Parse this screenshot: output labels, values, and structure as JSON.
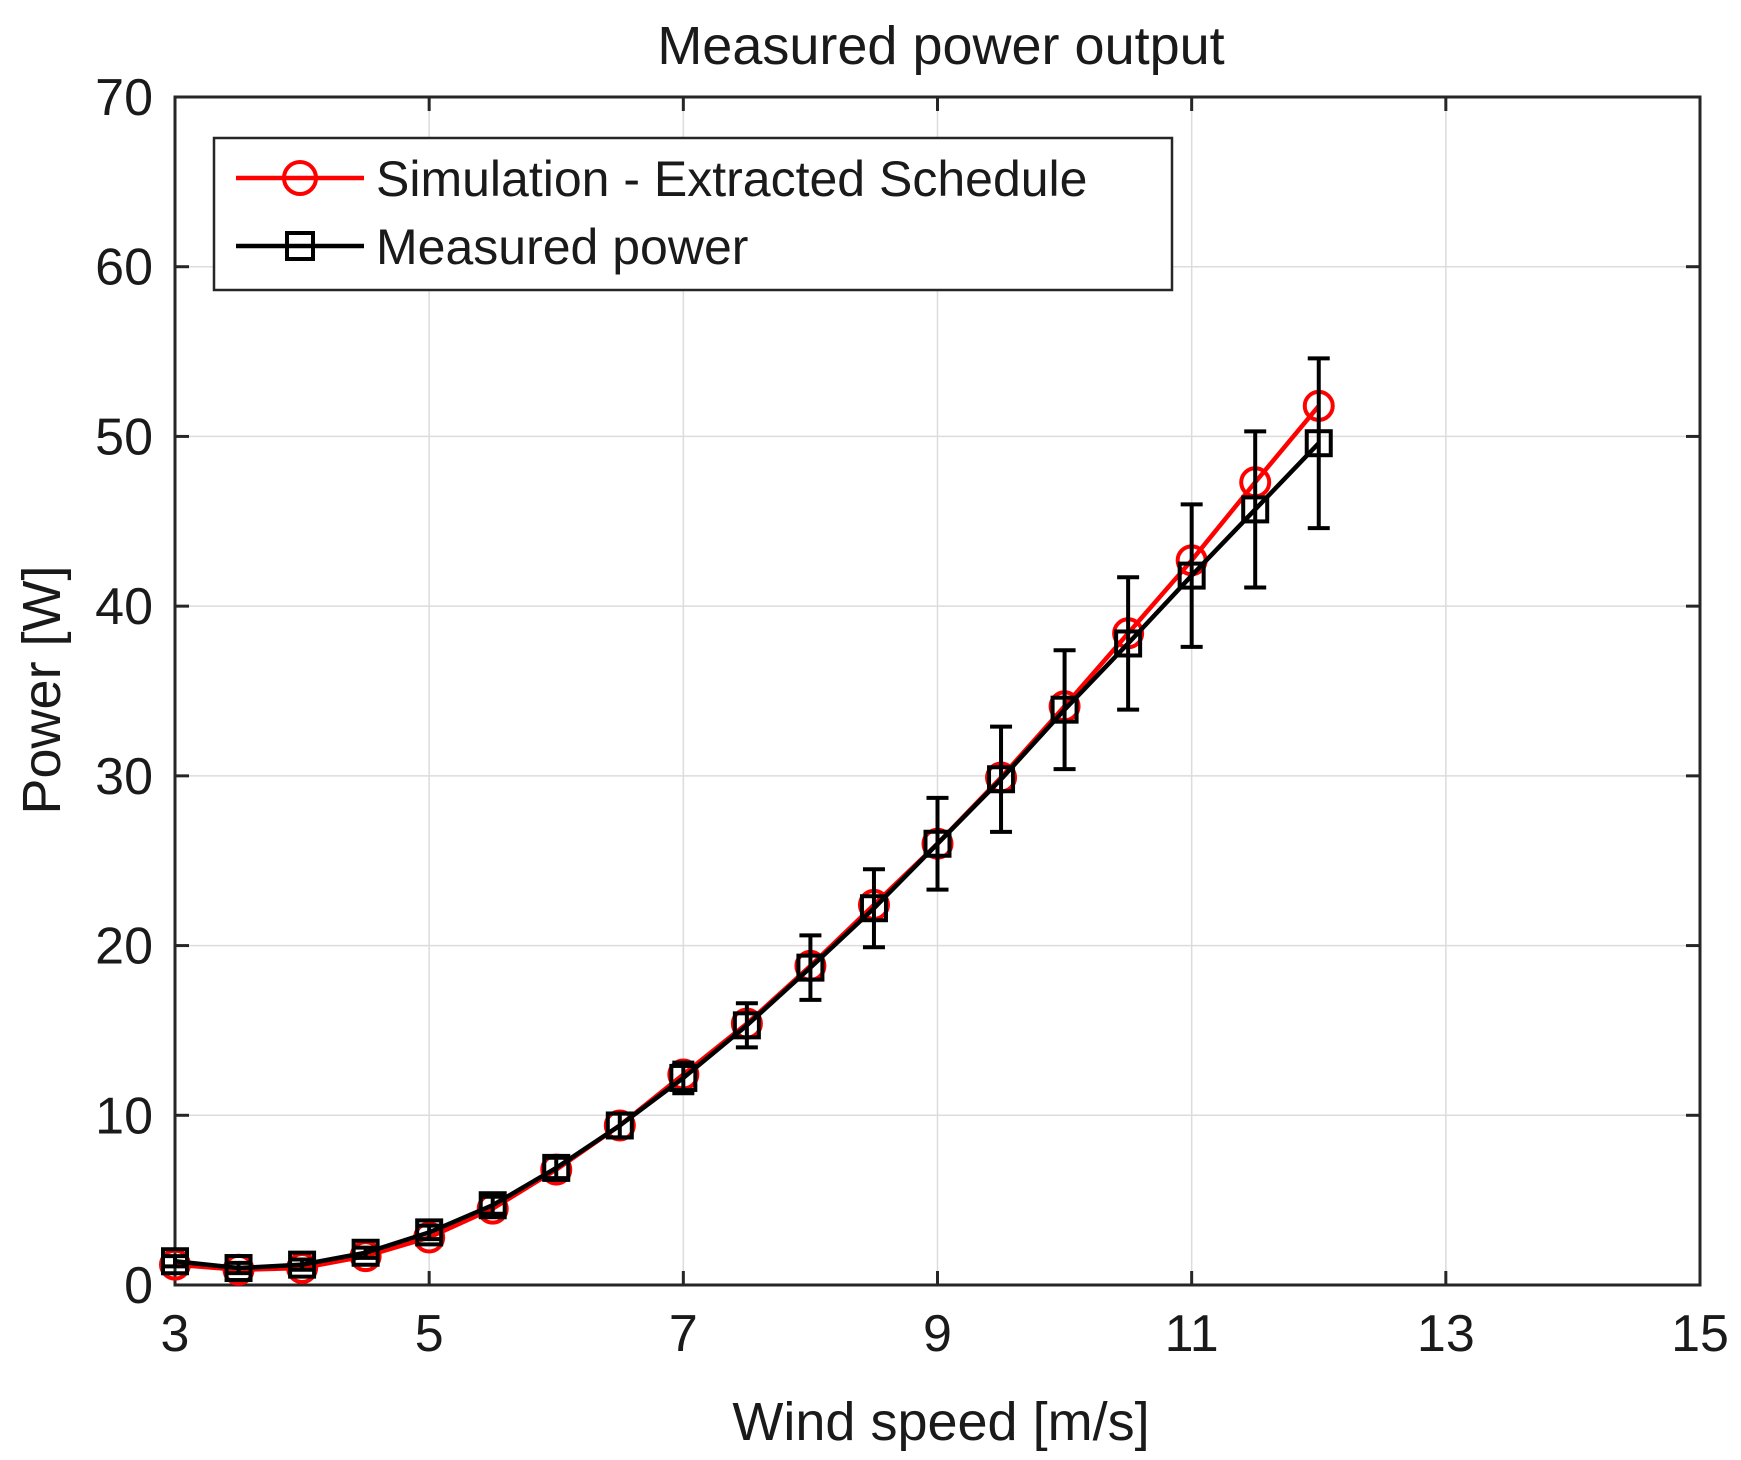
{
  "chart_data": {
    "type": "line",
    "title": "Measured power output",
    "xlabel": "Wind speed [m/s]",
    "ylabel": "Power [W]",
    "xlim": [
      3,
      15
    ],
    "ylim": [
      0,
      70
    ],
    "xticks": [
      3,
      5,
      7,
      9,
      11,
      13,
      15
    ],
    "xtick_labels": [
      "3",
      "5",
      "7",
      "9",
      "11",
      "13",
      "15"
    ],
    "yticks": [
      0,
      10,
      20,
      30,
      40,
      50,
      60,
      70
    ],
    "ytick_labels": [
      "0",
      "10",
      "20",
      "30",
      "40",
      "50",
      "60",
      "70"
    ],
    "grid": true,
    "legend_position": "top-left",
    "x": [
      3,
      3.5,
      4,
      4.5,
      5,
      5.5,
      6,
      6.5,
      7,
      7.5,
      8,
      8.5,
      9,
      9.5,
      10,
      10.5,
      11,
      11.5,
      12
    ],
    "series": [
      {
        "name": "Simulation - Extracted Schedule",
        "color": "#ff0000",
        "marker": "circle",
        "values": [
          1.2,
          0.9,
          1.0,
          1.7,
          2.8,
          4.5,
          6.8,
          9.4,
          12.4,
          15.4,
          18.8,
          22.4,
          26.0,
          29.9,
          34.1,
          38.4,
          42.7,
          47.3,
          51.8
        ]
      },
      {
        "name": "Measured power",
        "color": "#000000",
        "marker": "square",
        "values": [
          1.4,
          1.0,
          1.2,
          1.9,
          3.1,
          4.7,
          6.9,
          9.4,
          12.2,
          15.3,
          18.7,
          22.2,
          26.0,
          29.8,
          33.9,
          37.8,
          41.8,
          45.7,
          49.6
        ],
        "error": [
          0.3,
          0.3,
          0.3,
          0.3,
          0.4,
          0.5,
          0.6,
          0.7,
          0.9,
          1.3,
          1.9,
          2.3,
          2.7,
          3.1,
          3.5,
          3.9,
          4.2,
          4.6,
          5.0
        ]
      }
    ]
  }
}
